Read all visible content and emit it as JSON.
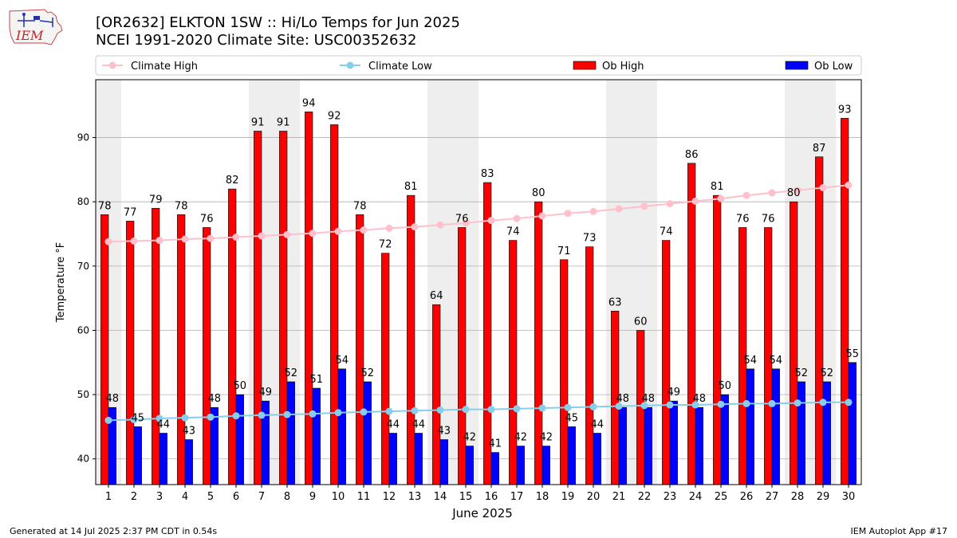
{
  "header": {
    "title_line1": "[OR2632] ELKTON 1SW :: Hi/Lo Temps for Jun 2025",
    "title_line2": "NCEI 1991-2020 Climate Site: USC00352632",
    "logo_text": "IEM"
  },
  "footer": {
    "generated": "Generated at 14 Jul 2025 2:37 PM CDT in 0.54s",
    "app": "IEM Autoplot App #17"
  },
  "colors": {
    "ob_high": "#ff0000",
    "ob_low": "#0000ff",
    "climate_high": "#ffc0cb",
    "climate_low": "#87ceeb",
    "weekend_shade": "#eeeeee"
  },
  "chart_data": {
    "type": "bar",
    "xlabel": "June 2025",
    "ylabel": "Temperature °F",
    "ylim": [
      36,
      99
    ],
    "yticks": [
      40,
      50,
      60,
      70,
      80,
      90
    ],
    "grid": "horizontal",
    "legend_position": "top",
    "categories": [
      "1",
      "2",
      "3",
      "4",
      "5",
      "6",
      "7",
      "8",
      "9",
      "10",
      "11",
      "12",
      "13",
      "14",
      "15",
      "16",
      "17",
      "18",
      "19",
      "20",
      "21",
      "22",
      "23",
      "24",
      "25",
      "26",
      "27",
      "28",
      "29",
      "30"
    ],
    "shaded_days": [
      1,
      7,
      8,
      14,
      15,
      21,
      22,
      28,
      29
    ],
    "series": [
      {
        "name": "Climate High",
        "kind": "line",
        "color": "#ffc0cb",
        "values": [
          73.8,
          73.9,
          74.0,
          74.2,
          74.3,
          74.5,
          74.7,
          74.9,
          75.1,
          75.4,
          75.6,
          75.9,
          76.1,
          76.4,
          76.7,
          77.1,
          77.4,
          77.8,
          78.2,
          78.5,
          78.9,
          79.3,
          79.7,
          80.1,
          80.5,
          81.0,
          81.4,
          81.8,
          82.2,
          82.6
        ]
      },
      {
        "name": "Climate Low",
        "kind": "line",
        "color": "#87ceeb",
        "values": [
          46.0,
          46.1,
          46.3,
          46.4,
          46.5,
          46.7,
          46.8,
          46.9,
          47.0,
          47.2,
          47.3,
          47.4,
          47.5,
          47.6,
          47.7,
          47.7,
          47.8,
          47.9,
          48.0,
          48.1,
          48.2,
          48.3,
          48.4,
          48.4,
          48.5,
          48.6,
          48.6,
          48.7,
          48.8,
          48.8
        ]
      },
      {
        "name": "Ob High",
        "kind": "bar",
        "color": "#ff0000",
        "values": [
          78,
          77,
          79,
          78,
          76,
          82,
          91,
          91,
          94,
          92,
          78,
          72,
          81,
          64,
          76,
          83,
          74,
          80,
          71,
          73,
          63,
          60,
          74,
          86,
          81,
          76,
          76,
          80,
          87,
          93
        ]
      },
      {
        "name": "Ob Low",
        "kind": "bar",
        "color": "#0000ff",
        "values": [
          48,
          45,
          44,
          43,
          48,
          50,
          49,
          52,
          51,
          54,
          52,
          44,
          44,
          43,
          42,
          41,
          42,
          42,
          45,
          44,
          48,
          48,
          49,
          48,
          50,
          54,
          54,
          52,
          52,
          55
        ]
      }
    ]
  }
}
